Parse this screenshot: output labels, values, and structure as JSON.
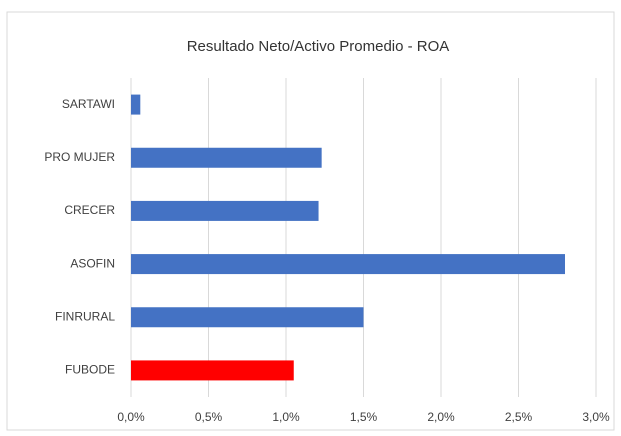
{
  "chart_data": {
    "type": "bar",
    "orientation": "horizontal",
    "title": "Resultado Neto/Activo Promedio - ROA",
    "categories": [
      "SARTAWI",
      "PRO MUJER",
      "CRECER",
      "ASOFIN",
      "FINRURAL",
      "FUBODE"
    ],
    "values": [
      0.06,
      1.23,
      1.21,
      2.8,
      1.5,
      1.05
    ],
    "colors": [
      "#4472c4",
      "#4472c4",
      "#4472c4",
      "#4472c4",
      "#4472c4",
      "#ff0000"
    ],
    "xlim": [
      0,
      3
    ],
    "xticks": [
      {
        "value": 0,
        "label": "0,0%"
      },
      {
        "value": 0.5,
        "label": "0,5%"
      },
      {
        "value": 1,
        "label": "1,0%"
      },
      {
        "value": 1.5,
        "label": "1,5%"
      },
      {
        "value": 2,
        "label": "2,0%"
      },
      {
        "value": 2.5,
        "label": "2,5%"
      },
      {
        "value": 3,
        "label": "3,0%"
      }
    ],
    "grid": true
  }
}
